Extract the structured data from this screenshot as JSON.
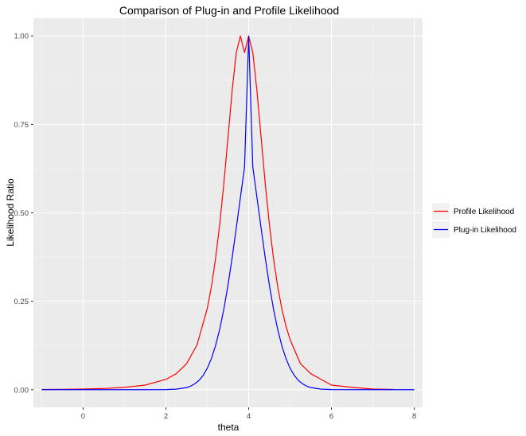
{
  "chart_data": {
    "type": "line",
    "title": "Comparison of Plug-in and Profile Likelihood",
    "xlabel": "theta",
    "ylabel": "Likelihood Ratio",
    "xlim": [
      -1.2,
      8.2
    ],
    "ylim": [
      -0.05,
      1.05
    ],
    "xticks": [
      0,
      2,
      4,
      6,
      8
    ],
    "xtick_labels": [
      "0",
      "2",
      "4",
      "6",
      "8"
    ],
    "yticks": [
      0,
      0.25,
      0.5,
      0.75,
      1
    ],
    "ytick_labels": [
      "0.00",
      "0.25",
      "0.50",
      "0.75",
      "1.00"
    ],
    "grid": true,
    "legend_position": "right",
    "series": [
      {
        "name": "Profile Likelihood",
        "color": "#ff0000",
        "x": [
          -1,
          -0.5,
          0,
          0.5,
          1,
          1.5,
          2,
          2.25,
          2.5,
          2.75,
          3,
          3.1,
          3.2,
          3.3,
          3.4,
          3.5,
          3.6,
          3.7,
          3.8,
          3.9,
          4,
          4.1,
          4.2,
          4.3,
          4.4,
          4.5,
          4.6,
          4.7,
          4.8,
          4.9,
          5,
          5.25,
          5.5,
          5.75,
          6,
          6.5,
          7,
          7.5
        ],
        "values": [
          0.0006,
          0.001,
          0.0018,
          0.0033,
          0.0065,
          0.013,
          0.0291,
          0.0452,
          0.0735,
          0.126,
          0.2293,
          0.2918,
          0.3704,
          0.4673,
          0.5827,
          0.7128,
          0.8445,
          0.9527,
          1.0,
          0.9527,
          1.0,
          0.9527,
          0.8445,
          0.7128,
          0.5827,
          0.4673,
          0.3704,
          0.2918,
          0.2293,
          0.1802,
          0.1417,
          0.0735,
          0.0452,
          0.0291,
          0.013,
          0.0065,
          0.0018,
          0.0006
        ]
      },
      {
        "name": "Plug-in Likelihood",
        "color": "#0000ff",
        "x": [
          -1,
          0,
          1,
          1.5,
          2,
          2.25,
          2.5,
          2.6,
          2.7,
          2.8,
          2.9,
          3,
          3.1,
          3.2,
          3.3,
          3.4,
          3.5,
          3.6,
          3.7,
          3.8,
          3.9,
          4,
          4.1,
          4.2,
          4.3,
          4.4,
          4.5,
          4.6,
          4.7,
          4.8,
          4.9,
          5,
          5.1,
          5.2,
          5.3,
          5.4,
          5.5,
          5.75,
          6,
          7,
          8
        ],
        "values": [
          0,
          0,
          0,
          0,
          0.0003,
          0.0014,
          0.0059,
          0.0101,
          0.0166,
          0.0263,
          0.0405,
          0.0606,
          0.0882,
          0.1245,
          0.1708,
          0.2278,
          0.2955,
          0.3726,
          0.4566,
          0.5437,
          0.6288,
          1.0,
          0.6288,
          0.5437,
          0.4566,
          0.3726,
          0.2955,
          0.2278,
          0.1708,
          0.1245,
          0.0882,
          0.0606,
          0.0405,
          0.0263,
          0.0166,
          0.0101,
          0.0059,
          0.0014,
          0.0003,
          0,
          0
        ]
      }
    ]
  }
}
